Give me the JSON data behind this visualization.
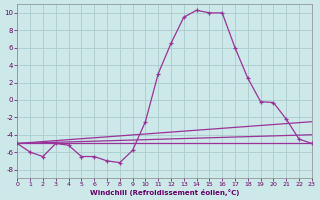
{
  "background_color": "#cce8e8",
  "grid_color": "#aacccc",
  "line_color": "#993399",
  "xlim": [
    0,
    23
  ],
  "ylim": [
    -9,
    11
  ],
  "xtick_vals": [
    0,
    1,
    2,
    3,
    4,
    5,
    6,
    7,
    8,
    9,
    10,
    11,
    12,
    13,
    14,
    15,
    16,
    17,
    18,
    19,
    20,
    21,
    22,
    23
  ],
  "xtick_labels": [
    "0",
    "1",
    "2",
    "3",
    "4",
    "5",
    "6",
    "7",
    "8",
    "9",
    "10",
    "11",
    "12",
    "13",
    "14",
    "15",
    "16",
    "17",
    "18",
    "19",
    "20",
    "21",
    "22",
    "23"
  ],
  "ytick_vals": [
    -8,
    -6,
    -4,
    -2,
    0,
    2,
    4,
    6,
    8,
    10
  ],
  "ytick_labels": [
    "-8",
    "-6",
    "-4",
    "-2",
    "0",
    "2",
    "4",
    "6",
    "8",
    "10"
  ],
  "xlabel": "Windchill (Refroidissement éolien,°C)",
  "main_x": [
    0,
    1,
    2,
    3,
    4,
    5,
    6,
    7,
    8,
    9,
    10,
    11,
    12,
    13,
    14,
    15,
    16,
    17,
    18,
    19,
    20,
    21,
    22,
    23
  ],
  "main_y": [
    -5.0,
    -6.0,
    -6.5,
    -5.0,
    -5.2,
    -6.5,
    -6.5,
    -7.0,
    -7.2,
    -5.8,
    -2.5,
    3.0,
    6.5,
    9.5,
    10.3,
    10.0,
    10.0,
    6.0,
    2.5,
    -0.2,
    -0.3,
    -2.2,
    -4.5,
    -5.0
  ],
  "trend1_x": [
    0,
    23
  ],
  "trend1_y": [
    -5.0,
    -5.0
  ],
  "trend2_x": [
    0,
    23
  ],
  "trend2_y": [
    -5.0,
    -2.5
  ],
  "trend3_x": [
    0,
    23
  ],
  "trend3_y": [
    -5.0,
    -4.0
  ]
}
